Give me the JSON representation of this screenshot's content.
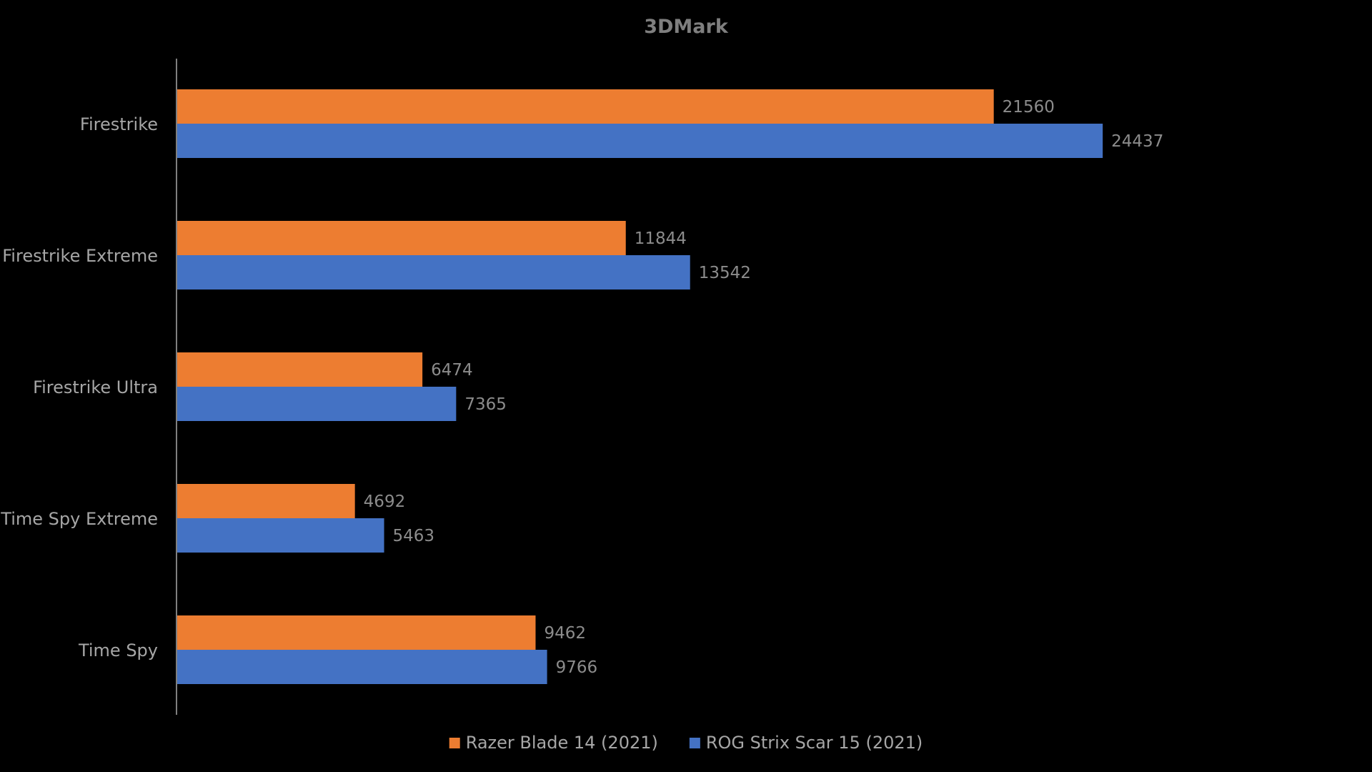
{
  "chart_data": {
    "type": "bar",
    "orientation": "horizontal",
    "title": "3DMark",
    "categories": [
      "Firestrike",
      "Firestrike Extreme",
      "Firestrike Ultra",
      "Time Spy Extreme",
      "Time Spy"
    ],
    "series": [
      {
        "name": "Razer Blade 14 (2021)",
        "color": "#ED7D31",
        "values": [
          21560,
          11844,
          6474,
          4692,
          9462
        ]
      },
      {
        "name": "ROG Strix Scar 15 (2021)",
        "color": "#4472C4",
        "values": [
          24437,
          13542,
          7365,
          5463,
          9766
        ]
      }
    ],
    "xlim": [
      0,
      30000
    ],
    "grid": false,
    "data_labels": true,
    "legend_position": "bottom",
    "background": "#000000"
  }
}
